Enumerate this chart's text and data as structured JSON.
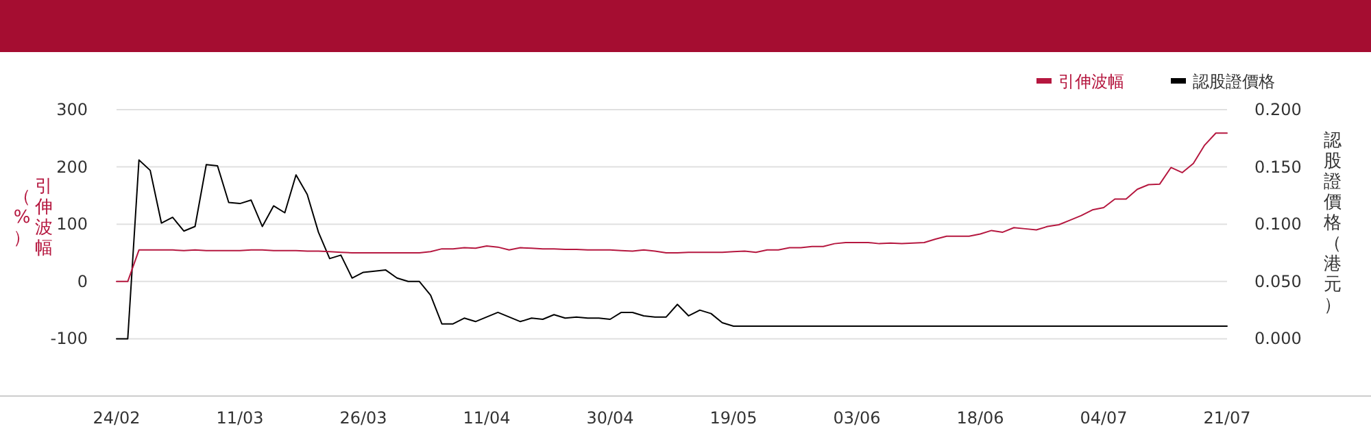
{
  "chart_data": {
    "type": "line",
    "ylabel": "引伸波幅（%）",
    "y2label": "認股證價格（港元）",
    "categories": [
      "24/02",
      null,
      null,
      null,
      null,
      null,
      null,
      null,
      null,
      null,
      null,
      "11/03",
      null,
      null,
      null,
      null,
      null,
      null,
      null,
      null,
      null,
      null,
      "26/03",
      null,
      null,
      null,
      null,
      null,
      null,
      null,
      null,
      null,
      null,
      "11/04",
      null,
      null,
      null,
      null,
      null,
      null,
      null,
      null,
      null,
      null,
      "30/04",
      null,
      null,
      null,
      null,
      null,
      null,
      null,
      null,
      null,
      null,
      "19/05",
      null,
      null,
      null,
      null,
      null,
      null,
      null,
      null,
      null,
      null,
      "03/06",
      null,
      null,
      null,
      null,
      null,
      null,
      null,
      null,
      null,
      null,
      "18/06",
      null,
      null,
      null,
      null,
      null,
      null,
      null,
      null,
      null,
      null,
      "04/07",
      null,
      null,
      null,
      null,
      null,
      null,
      null,
      null,
      null,
      null,
      "21/07"
    ],
    "series": [
      {
        "name": "引伸波幅",
        "color": "#b5173f",
        "values": [
          0,
          0,
          55,
          55,
          55,
          55,
          54,
          55,
          54,
          54,
          54,
          54,
          55,
          55,
          54,
          54,
          54,
          53,
          53,
          52,
          51,
          50,
          50,
          50,
          50,
          50,
          50,
          50,
          52,
          57,
          57,
          59,
          58,
          62,
          60,
          55,
          59,
          58,
          57,
          57,
          56,
          56,
          55,
          55,
          55,
          54,
          53,
          55,
          53,
          50,
          50,
          51,
          51,
          51,
          51,
          52,
          53,
          51,
          55,
          55,
          59,
          59,
          61,
          61,
          66,
          68,
          68,
          68,
          66,
          67,
          66,
          67,
          68,
          74,
          79,
          79,
          79,
          83,
          89,
          86,
          94,
          92,
          90,
          96,
          99,
          107,
          115,
          125,
          129,
          144,
          144,
          161,
          169,
          170,
          199,
          190,
          206,
          238,
          259,
          259
        ]
      },
      {
        "name": "認股證價格",
        "color": "#000000",
        "axis": "y2",
        "values": [
          0.0,
          0.0,
          0.156,
          0.147,
          0.101,
          0.106,
          0.094,
          0.098,
          0.152,
          0.151,
          0.119,
          0.118,
          0.121,
          0.098,
          0.116,
          0.11,
          0.143,
          0.126,
          0.093,
          0.07,
          0.073,
          0.053,
          0.058,
          0.059,
          0.06,
          0.053,
          0.05,
          0.05,
          0.038,
          0.013,
          0.013,
          0.018,
          0.015,
          0.019,
          0.023,
          0.019,
          0.015,
          0.018,
          0.017,
          0.021,
          0.018,
          0.019,
          0.018,
          0.018,
          0.017,
          0.023,
          0.023,
          0.02,
          0.019,
          0.019,
          0.03,
          0.02,
          0.025,
          0.022,
          0.014,
          0.011,
          0.011,
          0.011,
          0.011,
          0.011,
          0.011,
          0.011,
          0.011,
          0.011,
          0.011,
          0.011,
          0.011,
          0.011,
          0.011,
          0.011,
          0.011,
          0.011,
          0.011,
          0.011,
          0.011,
          0.011,
          0.011,
          0.011,
          0.011,
          0.011,
          0.011,
          0.011,
          0.011,
          0.011,
          0.011,
          0.011,
          0.011,
          0.011,
          0.011,
          0.011,
          0.011,
          0.011,
          0.011,
          0.011,
          0.011,
          0.011,
          0.011,
          0.011,
          0.011,
          0.011
        ]
      }
    ],
    "ylim": [
      -200,
      300
    ],
    "yticks": [
      -100,
      0,
      100,
      200,
      300
    ],
    "y2lim": [
      -0.05,
      0.2
    ],
    "y2ticks": [
      {
        "value": 0,
        "label": "0.000"
      },
      {
        "value": 0.05,
        "label": "0.050"
      },
      {
        "value": 0.1,
        "label": "0.100"
      },
      {
        "value": 0.15,
        "label": "0.150"
      },
      {
        "value": 0.2,
        "label": "0.200"
      }
    ],
    "grid": "y",
    "legend": "top right",
    "marker": "none",
    "line_style": "solid"
  }
}
